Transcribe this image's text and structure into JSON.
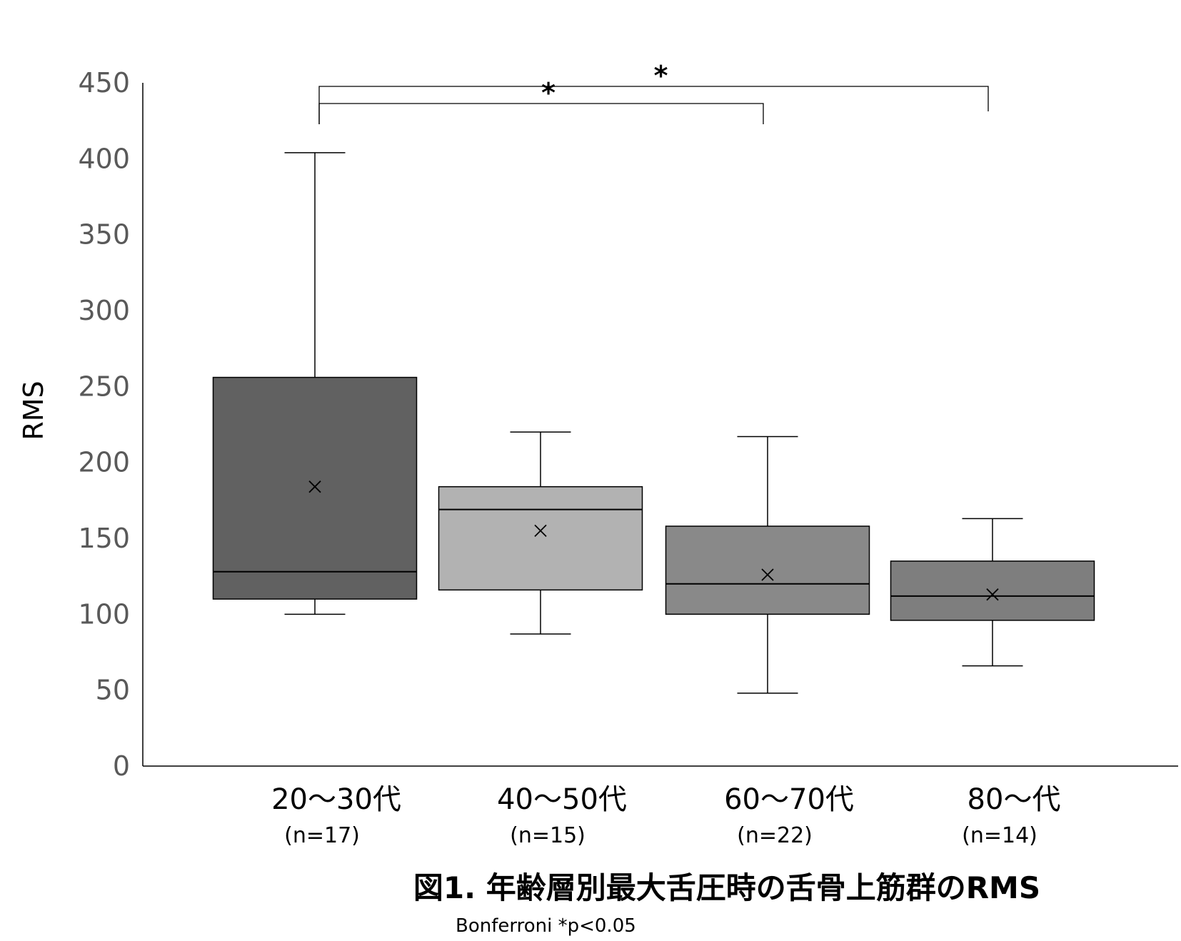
{
  "chart_data": {
    "type": "box",
    "title": "図1.  年齢層別最大舌圧時の舌骨上筋群のRMS",
    "note": "Bonferroni *p<0.05",
    "ylabel": "RMS",
    "xlabel": "",
    "ylim": [
      0,
      450
    ],
    "yticks": [
      0,
      50,
      100,
      150,
      200,
      250,
      300,
      350,
      400,
      450
    ],
    "grid": false,
    "categories": [
      "20〜30代",
      "40〜50代",
      "60〜70代",
      "80〜代"
    ],
    "sample_sizes": [
      "(n=17)",
      "(n=15)",
      "(n=22)",
      "(n=14)"
    ],
    "boxes": [
      {
        "category": "20〜30代",
        "min": 100,
        "q1": 110,
        "median": 128,
        "q3": 256,
        "max": 404,
        "mean": 184,
        "color": "#616161"
      },
      {
        "category": "40〜50代",
        "min": 87,
        "q1": 116,
        "median": 169,
        "q3": 184,
        "max": 220,
        "mean": 155,
        "color": "#b2b2b2"
      },
      {
        "category": "60〜70代",
        "min": 48,
        "q1": 100,
        "median": 120,
        "q3": 158,
        "max": 217,
        "mean": 126,
        "color": "#898989"
      },
      {
        "category": "80〜代",
        "min": 66,
        "q1": 96,
        "median": 112,
        "q3": 135,
        "max": 163,
        "mean": 113,
        "color": "#7e7e7e"
      }
    ],
    "significance": [
      {
        "from": "20〜30代",
        "to": "60〜70代",
        "label": "*"
      },
      {
        "from": "20〜30代",
        "to": "80〜代",
        "label": "*"
      }
    ]
  }
}
